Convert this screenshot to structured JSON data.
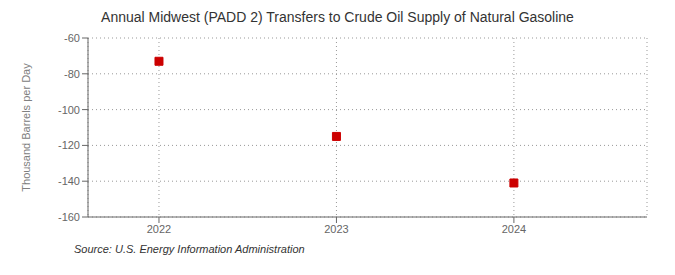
{
  "chart_data": {
    "type": "scatter",
    "title": "Annual Midwest (PADD 2) Transfers to Crude Oil Supply of Natural Gasoline",
    "ylabel": "Thousand Barrels per Day",
    "source": "Source: U.S. Energy Information Administration",
    "x": [
      2022,
      2023,
      2024
    ],
    "values": [
      -73,
      -115,
      -141
    ],
    "xlim": [
      2021.6,
      2024.75
    ],
    "xticks": [
      2022,
      2023,
      2024
    ],
    "ylim": [
      -160,
      -60
    ],
    "yticks": [
      -60,
      -80,
      -100,
      -120,
      -140,
      -160
    ],
    "color": "#cc0000",
    "marker": "square",
    "grid": true
  }
}
